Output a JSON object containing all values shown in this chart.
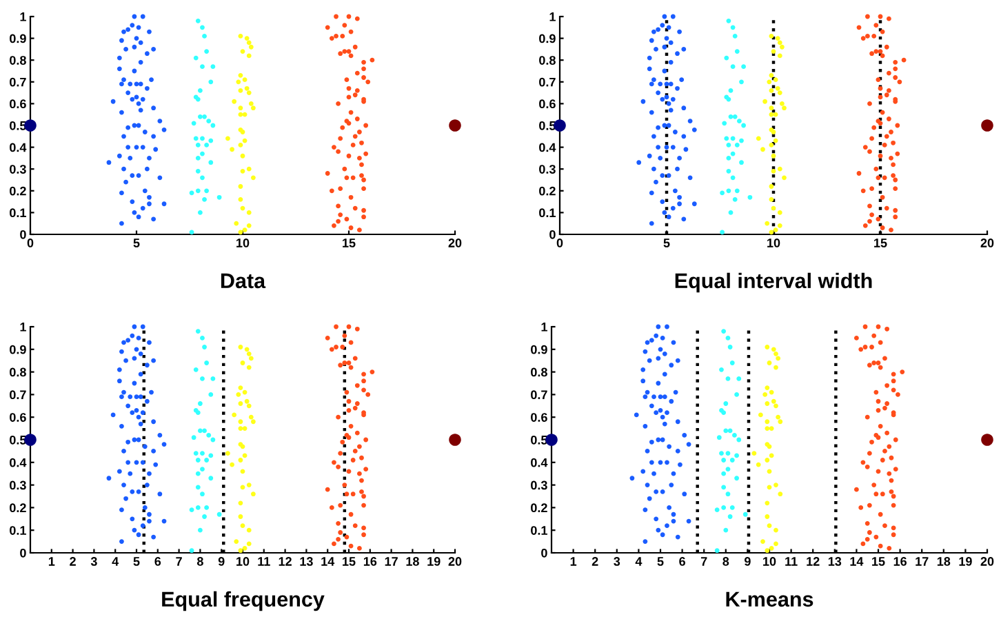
{
  "chart_data": [
    {
      "type": "scatter",
      "xlabel": "Data",
      "xlim": [
        0,
        20
      ],
      "xticks": [
        0,
        5,
        10,
        15,
        20
      ],
      "ylim": [
        0,
        1
      ],
      "yticks": [
        0,
        0.1,
        0.2,
        0.3,
        0.4,
        0.5,
        0.6,
        0.7,
        0.8,
        0.9,
        1
      ],
      "marker": "circle",
      "grid": false,
      "legend": false,
      "series": [
        {
          "color": "#1a5cff",
          "x": [
            4.9,
            5.3,
            4.8,
            5.1,
            4.6,
            4.4,
            5.6,
            5.0,
            4.3,
            5.2,
            4.9,
            4.5,
            5.8,
            5.5,
            4.2,
            5.2,
            4.2,
            4.9,
            4.4,
            5.7,
            4.7,
            5.0,
            5.2,
            4.3,
            5.5,
            4.6,
            5.0,
            5.3,
            3.9,
            4.8,
            5.1,
            5.8,
            5.2,
            4.3,
            6.1,
            4.9,
            5.1,
            6.3,
            4.6,
            5.4,
            4.4,
            5.8,
            4.6,
            5.0,
            5.3,
            5.9,
            4.2,
            5.6,
            4.7,
            3.7,
            4.4,
            5.5,
            5.1,
            4.8,
            6.1,
            4.5,
            5.4,
            4.3,
            5.6,
            4.8,
            5.6,
            6.3,
            5.3,
            4.9,
            5.1,
            5.8,
            4.3
          ],
          "values": [
            1.0,
            1.0,
            0.96,
            0.95,
            0.94,
            0.93,
            0.93,
            0.9,
            0.89,
            0.88,
            0.86,
            0.85,
            0.85,
            0.83,
            0.81,
            0.79,
            0.76,
            0.75,
            0.71,
            0.71,
            0.69,
            0.69,
            0.69,
            0.69,
            0.67,
            0.65,
            0.63,
            0.62,
            0.61,
            0.62,
            0.6,
            0.58,
            0.57,
            0.56,
            0.52,
            0.5,
            0.5,
            0.48,
            0.49,
            0.47,
            0.45,
            0.45,
            0.4,
            0.4,
            0.4,
            0.39,
            0.36,
            0.35,
            0.35,
            0.33,
            0.3,
            0.3,
            0.27,
            0.27,
            0.26,
            0.24,
            0.2,
            0.19,
            0.17,
            0.15,
            0.14,
            0.14,
            0.12,
            0.1,
            0.08,
            0.07,
            0.05
          ]
        },
        {
          "color": "#33ffff",
          "x": [
            7.9,
            8.1,
            8.2,
            7.8,
            8.3,
            8.1,
            8.6,
            8.5,
            8.0,
            7.8,
            7.9,
            8.0,
            8.2,
            8.4,
            7.7,
            8.6,
            7.8,
            8.1,
            8.5,
            7.9,
            8.3,
            8.1,
            7.9,
            8.5,
            7.9,
            8.1,
            8.3,
            7.6,
            7.9,
            8.9,
            8.2,
            8.0,
            7.6
          ],
          "values": [
            0.98,
            0.95,
            0.91,
            0.81,
            0.84,
            0.77,
            0.77,
            0.7,
            0.66,
            0.63,
            0.62,
            0.54,
            0.54,
            0.52,
            0.51,
            0.5,
            0.44,
            0.44,
            0.43,
            0.41,
            0.41,
            0.37,
            0.35,
            0.33,
            0.29,
            0.26,
            0.2,
            0.19,
            0.2,
            0.17,
            0.16,
            0.1,
            0.01
          ]
        },
        {
          "color": "#ffff1a",
          "x": [
            9.9,
            10.2,
            10.3,
            10.4,
            10.0,
            10.3,
            9.9,
            10.1,
            9.8,
            10.2,
            9.9,
            10.3,
            9.6,
            10.4,
            9.9,
            10.5,
            10.1,
            9.9,
            9.9,
            10.0,
            9.3,
            10.1,
            9.5,
            9.9,
            10.0,
            10.3,
            10.0,
            10.5,
            9.9,
            9.9,
            10.0,
            10.3,
            9.7,
            10.3,
            10.1,
            9.9
          ],
          "values": [
            0.91,
            0.9,
            0.88,
            0.86,
            0.84,
            0.82,
            0.73,
            0.71,
            0.7,
            0.67,
            0.66,
            0.65,
            0.61,
            0.6,
            0.58,
            0.58,
            0.55,
            0.55,
            0.48,
            0.47,
            0.44,
            0.43,
            0.39,
            0.41,
            0.36,
            0.3,
            0.29,
            0.26,
            0.22,
            0.16,
            0.12,
            0.1,
            0.05,
            0.04,
            0.02,
            0.01
          ]
        },
        {
          "color": "#ff4d1a",
          "x": [
            14.4,
            15.0,
            15.4,
            14.0,
            14.8,
            15.1,
            14.4,
            14.2,
            14.7,
            15.3,
            14.8,
            15.0,
            14.6,
            15.1,
            16.1,
            15.7,
            15.7,
            15.4,
            15.7,
            14.9,
            15.9,
            15.0,
            15.4,
            15.3,
            15.7,
            15.0,
            14.5,
            15.7,
            15.1,
            15.4,
            14.9,
            15.0,
            15.8,
            14.7,
            15.5,
            15.3,
            14.6,
            15.6,
            15.2,
            14.3,
            14.5,
            15.8,
            15.5,
            15.0,
            14.8,
            15.6,
            14.0,
            15.6,
            14.9,
            15.2,
            15.7,
            14.6,
            14.2,
            15.7,
            15.1,
            14.5,
            15.3,
            15.7,
            14.6,
            15.7,
            14.5,
            14.9,
            14.3,
            15.1,
            15.5
          ],
          "values": [
            1.0,
            1.0,
            0.99,
            0.95,
            0.96,
            0.93,
            0.91,
            0.9,
            0.91,
            0.86,
            0.84,
            0.84,
            0.83,
            0.82,
            0.8,
            0.79,
            0.76,
            0.74,
            0.72,
            0.71,
            0.7,
            0.67,
            0.66,
            0.64,
            0.62,
            0.63,
            0.6,
            0.61,
            0.56,
            0.53,
            0.52,
            0.51,
            0.5,
            0.49,
            0.47,
            0.45,
            0.44,
            0.42,
            0.41,
            0.4,
            0.38,
            0.37,
            0.35,
            0.36,
            0.3,
            0.32,
            0.28,
            0.27,
            0.26,
            0.26,
            0.25,
            0.21,
            0.2,
            0.21,
            0.17,
            0.13,
            0.12,
            0.11,
            0.09,
            0.08,
            0.06,
            0.07,
            0.04,
            0.03,
            0.02
          ]
        },
        {
          "color": "#00007f",
          "x": [
            0
          ],
          "values": [
            0.5
          ]
        },
        {
          "color": "#7f0000",
          "x": [
            20
          ],
          "values": [
            0.5
          ]
        }
      ]
    },
    {
      "type": "scatter",
      "xlabel": "Equal interval width",
      "xlim": [
        0,
        20
      ],
      "xticks": [
        0,
        5,
        10,
        15,
        20
      ],
      "ylim": [
        0,
        1
      ],
      "yticks": [
        0,
        0.1,
        0.2,
        0.3,
        0.4,
        0.5,
        0.6,
        0.7,
        0.8,
        0.9,
        1
      ],
      "marker": "circle",
      "grid": false,
      "legend": false,
      "ref_lines": [
        {
          "axis": "x",
          "value": 5,
          "color": "#000000",
          "line_style": "dotted"
        },
        {
          "axis": "x",
          "value": 10,
          "color": "#000000",
          "line_style": "dotted"
        },
        {
          "axis": "x",
          "value": 15,
          "color": "#000000",
          "line_style": "dotted"
        }
      ],
      "series": [
        {
          "color": "#1a5cff",
          "x": [
            4.9,
            5.3,
            4.8,
            5.1,
            4.6,
            4.4,
            5.6,
            5.0,
            4.3,
            5.2,
            4.9,
            4.5,
            5.8,
            5.5,
            4.2,
            5.2,
            4.2,
            4.9,
            4.4,
            5.7,
            4.7,
            5.0,
            5.2,
            4.3,
            5.5,
            4.6,
            5.0,
            5.3,
            3.9,
            4.8,
            5.1,
            5.8,
            5.2,
            4.3,
            6.1,
            4.9,
            5.1,
            6.3,
            4.6,
            5.4,
            4.4,
            5.8,
            4.6,
            5.0,
            5.3,
            5.9,
            4.2,
            5.6,
            4.7,
            3.7,
            4.4,
            5.5,
            5.1,
            4.8,
            6.1,
            4.5,
            5.4,
            4.3,
            5.6,
            4.8,
            5.6,
            6.3,
            5.3,
            4.9,
            5.1,
            5.8,
            4.3
          ],
          "values": [
            1.0,
            1.0,
            0.96,
            0.95,
            0.94,
            0.93,
            0.93,
            0.9,
            0.89,
            0.88,
            0.86,
            0.85,
            0.85,
            0.83,
            0.81,
            0.79,
            0.76,
            0.75,
            0.71,
            0.71,
            0.69,
            0.69,
            0.69,
            0.69,
            0.67,
            0.65,
            0.63,
            0.62,
            0.61,
            0.62,
            0.6,
            0.58,
            0.57,
            0.56,
            0.52,
            0.5,
            0.5,
            0.48,
            0.49,
            0.47,
            0.45,
            0.45,
            0.4,
            0.4,
            0.4,
            0.39,
            0.36,
            0.35,
            0.35,
            0.33,
            0.3,
            0.3,
            0.27,
            0.27,
            0.26,
            0.24,
            0.2,
            0.19,
            0.17,
            0.15,
            0.14,
            0.14,
            0.12,
            0.1,
            0.08,
            0.07,
            0.05
          ]
        },
        {
          "color": "#33ffff",
          "x": [
            7.9,
            8.1,
            8.2,
            7.8,
            8.3,
            8.1,
            8.6,
            8.5,
            8.0,
            7.8,
            7.9,
            8.0,
            8.2,
            8.4,
            7.7,
            8.6,
            7.8,
            8.1,
            8.5,
            7.9,
            8.3,
            8.1,
            7.9,
            8.5,
            7.9,
            8.1,
            8.3,
            7.6,
            7.9,
            8.9,
            8.2,
            8.0,
            7.6
          ],
          "values": [
            0.98,
            0.95,
            0.91,
            0.81,
            0.84,
            0.77,
            0.77,
            0.7,
            0.66,
            0.63,
            0.62,
            0.54,
            0.54,
            0.52,
            0.51,
            0.5,
            0.44,
            0.44,
            0.43,
            0.41,
            0.41,
            0.37,
            0.35,
            0.33,
            0.29,
            0.26,
            0.2,
            0.19,
            0.2,
            0.17,
            0.16,
            0.1,
            0.01
          ]
        },
        {
          "color": "#ffff1a",
          "x": [
            9.9,
            10.2,
            10.3,
            10.4,
            10.0,
            10.3,
            9.9,
            10.1,
            9.8,
            10.2,
            9.9,
            10.3,
            9.6,
            10.4,
            9.9,
            10.5,
            10.1,
            9.9,
            9.9,
            10.0,
            9.3,
            10.1,
            9.5,
            9.9,
            10.0,
            10.3,
            10.0,
            10.5,
            9.9,
            9.9,
            10.0,
            10.3,
            9.7,
            10.3,
            10.1,
            9.9
          ],
          "values": [
            0.91,
            0.9,
            0.88,
            0.86,
            0.84,
            0.82,
            0.73,
            0.71,
            0.7,
            0.67,
            0.66,
            0.65,
            0.61,
            0.6,
            0.58,
            0.58,
            0.55,
            0.55,
            0.48,
            0.47,
            0.44,
            0.43,
            0.39,
            0.41,
            0.36,
            0.3,
            0.29,
            0.26,
            0.22,
            0.16,
            0.12,
            0.1,
            0.05,
            0.04,
            0.02,
            0.01
          ]
        },
        {
          "color": "#ff4d1a",
          "x": [
            14.4,
            15.0,
            15.4,
            14.0,
            14.8,
            15.1,
            14.4,
            14.2,
            14.7,
            15.3,
            14.8,
            15.0,
            14.6,
            15.1,
            16.1,
            15.7,
            15.7,
            15.4,
            15.7,
            14.9,
            15.9,
            15.0,
            15.4,
            15.3,
            15.7,
            15.0,
            14.5,
            15.7,
            15.1,
            15.4,
            14.9,
            15.0,
            15.8,
            14.7,
            15.5,
            15.3,
            14.6,
            15.6,
            15.2,
            14.3,
            14.5,
            15.8,
            15.5,
            15.0,
            14.8,
            15.6,
            14.0,
            15.6,
            14.9,
            15.2,
            15.7,
            14.6,
            14.2,
            15.7,
            15.1,
            14.5,
            15.3,
            15.7,
            14.6,
            15.7,
            14.5,
            14.9,
            14.3,
            15.1,
            15.5
          ],
          "values": [
            1.0,
            1.0,
            0.99,
            0.95,
            0.96,
            0.93,
            0.91,
            0.9,
            0.91,
            0.86,
            0.84,
            0.84,
            0.83,
            0.82,
            0.8,
            0.79,
            0.76,
            0.74,
            0.72,
            0.71,
            0.7,
            0.67,
            0.66,
            0.64,
            0.62,
            0.63,
            0.6,
            0.61,
            0.56,
            0.53,
            0.52,
            0.51,
            0.5,
            0.49,
            0.47,
            0.45,
            0.44,
            0.42,
            0.41,
            0.4,
            0.38,
            0.37,
            0.35,
            0.36,
            0.3,
            0.32,
            0.28,
            0.27,
            0.26,
            0.26,
            0.25,
            0.21,
            0.2,
            0.21,
            0.17,
            0.13,
            0.12,
            0.11,
            0.09,
            0.08,
            0.06,
            0.07,
            0.04,
            0.03,
            0.02
          ]
        },
        {
          "color": "#00007f",
          "x": [
            0
          ],
          "values": [
            0.5
          ]
        },
        {
          "color": "#7f0000",
          "x": [
            20
          ],
          "values": [
            0.5
          ]
        }
      ]
    },
    {
      "type": "scatter",
      "xlabel": "Equal frequency",
      "xlim": [
        0,
        20
      ],
      "xticks": [
        1,
        2,
        3,
        4,
        5,
        6,
        7,
        8,
        9,
        10,
        11,
        12,
        13,
        14,
        15,
        16,
        17,
        18,
        19,
        20
      ],
      "ylim": [
        0,
        1
      ],
      "yticks": [
        0,
        0.1,
        0.2,
        0.3,
        0.4,
        0.5,
        0.6,
        0.7,
        0.8,
        0.9,
        1
      ],
      "marker": "circle",
      "grid": false,
      "legend": false,
      "ref_lines": [
        {
          "axis": "x",
          "value": 5.35,
          "color": "#000000",
          "line_style": "dotted"
        },
        {
          "axis": "x",
          "value": 9.1,
          "color": "#000000",
          "line_style": "dotted"
        },
        {
          "axis": "x",
          "value": 14.8,
          "color": "#000000",
          "line_style": "dotted"
        }
      ],
      "series": [
        {
          "color": "#1a5cff",
          "x": [
            4.9,
            5.3,
            4.8,
            5.1,
            4.6,
            4.4,
            5.6,
            5.0,
            4.3,
            5.2,
            4.9,
            4.5,
            5.8,
            5.5,
            4.2,
            5.2,
            4.2,
            4.9,
            4.4,
            5.7,
            4.7,
            5.0,
            5.2,
            4.3,
            5.5,
            4.6,
            5.0,
            5.3,
            3.9,
            4.8,
            5.1,
            5.8,
            5.2,
            4.3,
            6.1,
            4.9,
            5.1,
            6.3,
            4.6,
            5.4,
            4.4,
            5.8,
            4.6,
            5.0,
            5.3,
            5.9,
            4.2,
            5.6,
            4.7,
            3.7,
            4.4,
            5.5,
            5.1,
            4.8,
            6.1,
            4.5,
            5.4,
            4.3,
            5.6,
            4.8,
            5.6,
            6.3,
            5.3,
            4.9,
            5.1,
            5.8,
            4.3
          ],
          "values": [
            1.0,
            1.0,
            0.96,
            0.95,
            0.94,
            0.93,
            0.93,
            0.9,
            0.89,
            0.88,
            0.86,
            0.85,
            0.85,
            0.83,
            0.81,
            0.79,
            0.76,
            0.75,
            0.71,
            0.71,
            0.69,
            0.69,
            0.69,
            0.69,
            0.67,
            0.65,
            0.63,
            0.62,
            0.61,
            0.62,
            0.6,
            0.58,
            0.57,
            0.56,
            0.52,
            0.5,
            0.5,
            0.48,
            0.49,
            0.47,
            0.45,
            0.45,
            0.4,
            0.4,
            0.4,
            0.39,
            0.36,
            0.35,
            0.35,
            0.33,
            0.3,
            0.3,
            0.27,
            0.27,
            0.26,
            0.24,
            0.2,
            0.19,
            0.17,
            0.15,
            0.14,
            0.14,
            0.12,
            0.1,
            0.08,
            0.07,
            0.05
          ]
        },
        {
          "color": "#33ffff",
          "x": [
            7.9,
            8.1,
            8.2,
            7.8,
            8.3,
            8.1,
            8.6,
            8.5,
            8.0,
            7.8,
            7.9,
            8.0,
            8.2,
            8.4,
            7.7,
            8.6,
            7.8,
            8.1,
            8.5,
            7.9,
            8.3,
            8.1,
            7.9,
            8.5,
            7.9,
            8.1,
            8.3,
            7.6,
            7.9,
            8.9,
            8.2,
            8.0,
            7.6
          ],
          "values": [
            0.98,
            0.95,
            0.91,
            0.81,
            0.84,
            0.77,
            0.77,
            0.7,
            0.66,
            0.63,
            0.62,
            0.54,
            0.54,
            0.52,
            0.51,
            0.5,
            0.44,
            0.44,
            0.43,
            0.41,
            0.41,
            0.37,
            0.35,
            0.33,
            0.29,
            0.26,
            0.2,
            0.19,
            0.2,
            0.17,
            0.16,
            0.1,
            0.01
          ]
        },
        {
          "color": "#ffff1a",
          "x": [
            9.9,
            10.2,
            10.3,
            10.4,
            10.0,
            10.3,
            9.9,
            10.1,
            9.8,
            10.2,
            9.9,
            10.3,
            9.6,
            10.4,
            9.9,
            10.5,
            10.1,
            9.9,
            9.9,
            10.0,
            9.3,
            10.1,
            9.5,
            9.9,
            10.0,
            10.3,
            10.0,
            10.5,
            9.9,
            9.9,
            10.0,
            10.3,
            9.7,
            10.3,
            10.1,
            9.9
          ],
          "values": [
            0.91,
            0.9,
            0.88,
            0.86,
            0.84,
            0.82,
            0.73,
            0.71,
            0.7,
            0.67,
            0.66,
            0.65,
            0.61,
            0.6,
            0.58,
            0.58,
            0.55,
            0.55,
            0.48,
            0.47,
            0.44,
            0.43,
            0.39,
            0.41,
            0.36,
            0.3,
            0.29,
            0.26,
            0.22,
            0.16,
            0.12,
            0.1,
            0.05,
            0.04,
            0.02,
            0.01
          ]
        },
        {
          "color": "#ff4d1a",
          "x": [
            14.4,
            15.0,
            15.4,
            14.0,
            14.8,
            15.1,
            14.4,
            14.2,
            14.7,
            15.3,
            14.8,
            15.0,
            14.6,
            15.1,
            16.1,
            15.7,
            15.7,
            15.4,
            15.7,
            14.9,
            15.9,
            15.0,
            15.4,
            15.3,
            15.7,
            15.0,
            14.5,
            15.7,
            15.1,
            15.4,
            14.9,
            15.0,
            15.8,
            14.7,
            15.5,
            15.3,
            14.6,
            15.6,
            15.2,
            14.3,
            14.5,
            15.8,
            15.5,
            15.0,
            14.8,
            15.6,
            14.0,
            15.6,
            14.9,
            15.2,
            15.7,
            14.6,
            14.2,
            15.7,
            15.1,
            14.5,
            15.3,
            15.7,
            14.6,
            15.7,
            14.5,
            14.9,
            14.3,
            15.1,
            15.5
          ],
          "values": [
            1.0,
            1.0,
            0.99,
            0.95,
            0.96,
            0.93,
            0.91,
            0.9,
            0.91,
            0.86,
            0.84,
            0.84,
            0.83,
            0.82,
            0.8,
            0.79,
            0.76,
            0.74,
            0.72,
            0.71,
            0.7,
            0.67,
            0.66,
            0.64,
            0.62,
            0.63,
            0.6,
            0.61,
            0.56,
            0.53,
            0.52,
            0.51,
            0.5,
            0.49,
            0.47,
            0.45,
            0.44,
            0.42,
            0.41,
            0.4,
            0.38,
            0.37,
            0.35,
            0.36,
            0.3,
            0.32,
            0.28,
            0.27,
            0.26,
            0.26,
            0.25,
            0.21,
            0.2,
            0.21,
            0.17,
            0.13,
            0.12,
            0.11,
            0.09,
            0.08,
            0.06,
            0.07,
            0.04,
            0.03,
            0.02
          ]
        },
        {
          "color": "#00007f",
          "x": [
            0
          ],
          "values": [
            0.5
          ]
        },
        {
          "color": "#7f0000",
          "x": [
            20
          ],
          "values": [
            0.5
          ]
        }
      ]
    },
    {
      "type": "scatter",
      "xlabel": "K-means",
      "xlim": [
        0,
        20
      ],
      "xticks": [
        1,
        2,
        3,
        4,
        5,
        6,
        7,
        8,
        9,
        10,
        11,
        12,
        13,
        14,
        15,
        16,
        17,
        18,
        19,
        20
      ],
      "ylim": [
        0,
        1
      ],
      "yticks": [
        0,
        0.1,
        0.2,
        0.3,
        0.4,
        0.5,
        0.6,
        0.7,
        0.8,
        0.9,
        1
      ],
      "marker": "circle",
      "grid": false,
      "legend": false,
      "ref_lines": [
        {
          "axis": "x",
          "value": 6.7,
          "color": "#000000",
          "line_style": "dotted"
        },
        {
          "axis": "x",
          "value": 9.05,
          "color": "#000000",
          "line_style": "dotted"
        },
        {
          "axis": "x",
          "value": 13.05,
          "color": "#000000",
          "line_style": "dotted"
        }
      ],
      "series": [
        {
          "color": "#1a5cff",
          "x": [
            4.9,
            5.3,
            4.8,
            5.1,
            4.6,
            4.4,
            5.6,
            5.0,
            4.3,
            5.2,
            4.9,
            4.5,
            5.8,
            5.5,
            4.2,
            5.2,
            4.2,
            4.9,
            4.4,
            5.7,
            4.7,
            5.0,
            5.2,
            4.3,
            5.5,
            4.6,
            5.0,
            5.3,
            3.9,
            4.8,
            5.1,
            5.8,
            5.2,
            4.3,
            6.1,
            4.9,
            5.1,
            6.3,
            4.6,
            5.4,
            4.4,
            5.8,
            4.6,
            5.0,
            5.3,
            5.9,
            4.2,
            5.6,
            4.7,
            3.7,
            4.4,
            5.5,
            5.1,
            4.8,
            6.1,
            4.5,
            5.4,
            4.3,
            5.6,
            4.8,
            5.6,
            6.3,
            5.3,
            4.9,
            5.1,
            5.8,
            4.3
          ],
          "values": [
            1.0,
            1.0,
            0.96,
            0.95,
            0.94,
            0.93,
            0.93,
            0.9,
            0.89,
            0.88,
            0.86,
            0.85,
            0.85,
            0.83,
            0.81,
            0.79,
            0.76,
            0.75,
            0.71,
            0.71,
            0.69,
            0.69,
            0.69,
            0.69,
            0.67,
            0.65,
            0.63,
            0.62,
            0.61,
            0.62,
            0.6,
            0.58,
            0.57,
            0.56,
            0.52,
            0.5,
            0.5,
            0.48,
            0.49,
            0.47,
            0.45,
            0.45,
            0.4,
            0.4,
            0.4,
            0.39,
            0.36,
            0.35,
            0.35,
            0.33,
            0.3,
            0.3,
            0.27,
            0.27,
            0.26,
            0.24,
            0.2,
            0.19,
            0.17,
            0.15,
            0.14,
            0.14,
            0.12,
            0.1,
            0.08,
            0.07,
            0.05
          ]
        },
        {
          "color": "#33ffff",
          "x": [
            7.9,
            8.1,
            8.2,
            7.8,
            8.3,
            8.1,
            8.6,
            8.5,
            8.0,
            7.8,
            7.9,
            8.0,
            8.2,
            8.4,
            7.7,
            8.6,
            7.8,
            8.1,
            8.5,
            7.9,
            8.3,
            8.1,
            7.9,
            8.5,
            7.9,
            8.1,
            8.3,
            7.6,
            7.9,
            8.9,
            8.2,
            8.0,
            7.6
          ],
          "values": [
            0.98,
            0.95,
            0.91,
            0.81,
            0.84,
            0.77,
            0.77,
            0.7,
            0.66,
            0.63,
            0.62,
            0.54,
            0.54,
            0.52,
            0.51,
            0.5,
            0.44,
            0.44,
            0.43,
            0.41,
            0.41,
            0.37,
            0.35,
            0.33,
            0.29,
            0.26,
            0.2,
            0.19,
            0.2,
            0.17,
            0.16,
            0.1,
            0.01
          ]
        },
        {
          "color": "#ffff1a",
          "x": [
            9.9,
            10.2,
            10.3,
            10.4,
            10.0,
            10.3,
            9.9,
            10.1,
            9.8,
            10.2,
            9.9,
            10.3,
            9.6,
            10.4,
            9.9,
            10.5,
            10.1,
            9.9,
            9.9,
            10.0,
            9.3,
            10.1,
            9.5,
            9.9,
            10.0,
            10.3,
            10.0,
            10.5,
            9.9,
            9.9,
            10.0,
            10.3,
            9.7,
            10.3,
            10.1,
            9.9
          ],
          "values": [
            0.91,
            0.9,
            0.88,
            0.86,
            0.84,
            0.82,
            0.73,
            0.71,
            0.7,
            0.67,
            0.66,
            0.65,
            0.61,
            0.6,
            0.58,
            0.58,
            0.55,
            0.55,
            0.48,
            0.47,
            0.44,
            0.43,
            0.39,
            0.41,
            0.36,
            0.3,
            0.29,
            0.26,
            0.22,
            0.16,
            0.12,
            0.1,
            0.05,
            0.04,
            0.02,
            0.01
          ]
        },
        {
          "color": "#ff4d1a",
          "x": [
            14.4,
            15.0,
            15.4,
            14.0,
            14.8,
            15.1,
            14.4,
            14.2,
            14.7,
            15.3,
            14.8,
            15.0,
            14.6,
            15.1,
            16.1,
            15.7,
            15.7,
            15.4,
            15.7,
            14.9,
            15.9,
            15.0,
            15.4,
            15.3,
            15.7,
            15.0,
            14.5,
            15.7,
            15.1,
            15.4,
            14.9,
            15.0,
            15.8,
            14.7,
            15.5,
            15.3,
            14.6,
            15.6,
            15.2,
            14.3,
            14.5,
            15.8,
            15.5,
            15.0,
            14.8,
            15.6,
            14.0,
            15.6,
            14.9,
            15.2,
            15.7,
            14.6,
            14.2,
            15.7,
            15.1,
            14.5,
            15.3,
            15.7,
            14.6,
            15.7,
            14.5,
            14.9,
            14.3,
            15.1,
            15.5
          ],
          "values": [
            1.0,
            1.0,
            0.99,
            0.95,
            0.96,
            0.93,
            0.91,
            0.9,
            0.91,
            0.86,
            0.84,
            0.84,
            0.83,
            0.82,
            0.8,
            0.79,
            0.76,
            0.74,
            0.72,
            0.71,
            0.7,
            0.67,
            0.66,
            0.64,
            0.62,
            0.63,
            0.6,
            0.61,
            0.56,
            0.53,
            0.52,
            0.51,
            0.5,
            0.49,
            0.47,
            0.45,
            0.44,
            0.42,
            0.41,
            0.4,
            0.38,
            0.37,
            0.35,
            0.36,
            0.3,
            0.32,
            0.28,
            0.27,
            0.26,
            0.26,
            0.25,
            0.21,
            0.2,
            0.21,
            0.17,
            0.13,
            0.12,
            0.11,
            0.09,
            0.08,
            0.06,
            0.07,
            0.04,
            0.03,
            0.02
          ]
        },
        {
          "color": "#00007f",
          "x": [
            0
          ],
          "values": [
            0.5
          ]
        },
        {
          "color": "#7f0000",
          "x": [
            20
          ],
          "values": [
            0.5
          ]
        }
      ]
    }
  ]
}
